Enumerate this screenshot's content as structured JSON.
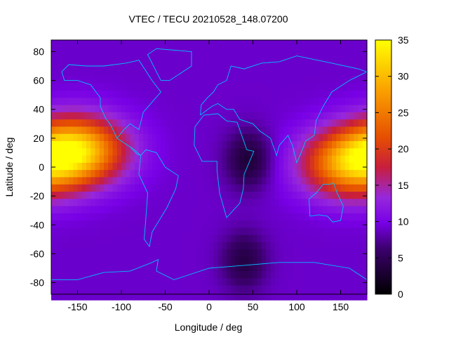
{
  "chart_data": {
    "type": "heatmap",
    "title": "VTEC / TECU 20210528_148.07200",
    "xlabel": "Longitude / deg",
    "ylabel": "Latitude / deg",
    "xlim": [
      -180,
      180
    ],
    "ylim": [
      -88,
      88
    ],
    "x_ticks": [
      -150,
      -100,
      -50,
      0,
      50,
      100,
      150
    ],
    "y_ticks": [
      -80,
      -60,
      -40,
      -20,
      0,
      20,
      40,
      60,
      80
    ],
    "colorbar": {
      "range": [
        0,
        35
      ],
      "ticks": [
        0,
        5,
        10,
        15,
        20,
        25,
        30,
        35
      ],
      "colormap": "gnuplot-black-purple-red-orange-yellow"
    },
    "grid": false,
    "peak_regions": [
      {
        "center_lon": -150,
        "center_lat": 12,
        "peak_vtec": 30
      },
      {
        "center_lon": 160,
        "center_lat": 2,
        "peak_vtec": 27
      }
    ],
    "minimum_regions": [
      {
        "center_lon": 45,
        "center_lat": 5,
        "vtec": 2
      },
      {
        "center_lon": 40,
        "center_lat": -65,
        "vtec": 3
      }
    ],
    "background_vtec": 9,
    "coastline_color": "#00bfff"
  }
}
